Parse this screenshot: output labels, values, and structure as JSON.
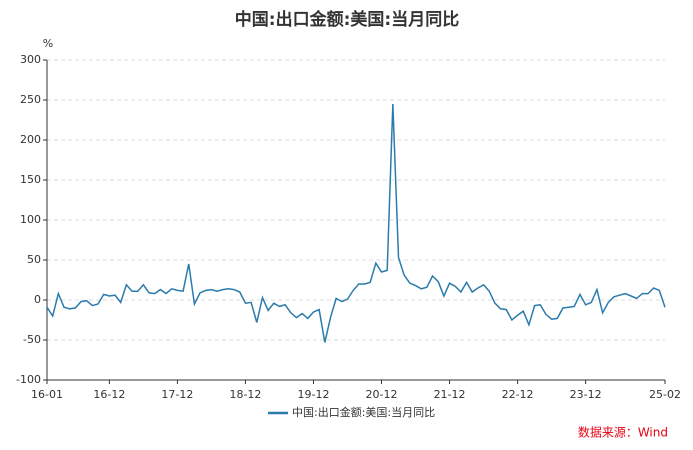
{
  "chart_data": {
    "type": "line",
    "title": "中国:出口金额:美国:当月同比",
    "y_unit": "%",
    "source": "数据来源：Wind",
    "x": [
      "16-01",
      "16-02",
      "16-03",
      "16-04",
      "16-05",
      "16-06",
      "16-07",
      "16-08",
      "16-09",
      "16-10",
      "16-11",
      "16-12",
      "17-01",
      "17-02",
      "17-03",
      "17-04",
      "17-05",
      "17-06",
      "17-07",
      "17-08",
      "17-09",
      "17-10",
      "17-11",
      "17-12",
      "18-01",
      "18-02",
      "18-03",
      "18-04",
      "18-05",
      "18-06",
      "18-07",
      "18-08",
      "18-09",
      "18-10",
      "18-11",
      "18-12",
      "19-01",
      "19-02",
      "19-03",
      "19-04",
      "19-05",
      "19-06",
      "19-07",
      "19-08",
      "19-09",
      "19-10",
      "19-11",
      "19-12",
      "20-01",
      "20-02",
      "20-03",
      "20-04",
      "20-05",
      "20-06",
      "20-07",
      "20-08",
      "20-09",
      "20-10",
      "20-11",
      "20-12",
      "21-01",
      "21-02",
      "21-03",
      "21-04",
      "21-05",
      "21-06",
      "21-07",
      "21-08",
      "21-09",
      "21-10",
      "21-11",
      "21-12",
      "22-01",
      "22-02",
      "22-03",
      "22-04",
      "22-05",
      "22-06",
      "22-07",
      "22-08",
      "22-09",
      "22-10",
      "22-11",
      "22-12",
      "23-01",
      "23-02",
      "23-03",
      "23-04",
      "23-05",
      "23-06",
      "23-07",
      "23-08",
      "23-09",
      "23-10",
      "23-11",
      "23-12",
      "24-01",
      "24-02",
      "24-03",
      "24-04",
      "24-05",
      "24-06",
      "24-07",
      "24-08",
      "24-09",
      "24-10",
      "24-11",
      "24-12",
      "25-01",
      "25-02"
    ],
    "series": [
      {
        "name": "中国:出口金额:美国:当月同比",
        "color": "#2b7bab",
        "values": [
          -9,
          -20,
          8,
          -9,
          -11,
          -10,
          -2,
          -1,
          -7,
          -5,
          7,
          5,
          6,
          -3,
          19,
          11,
          11,
          19,
          9,
          8,
          13,
          8,
          14,
          12,
          11,
          45,
          -5,
          9,
          12,
          13,
          11,
          13,
          14,
          13,
          10,
          -4,
          -3,
          -28,
          3,
          -13,
          -4,
          -8,
          -6,
          -16,
          -22,
          -17,
          -23,
          -15,
          -12,
          -53,
          -22,
          2,
          -2,
          1,
          12,
          20,
          20,
          22,
          46,
          35,
          37,
          245,
          53,
          31,
          21,
          18,
          14,
          16,
          30,
          23,
          5,
          21,
          17,
          10,
          22,
          10,
          15,
          19,
          11,
          -4,
          -11,
          -12,
          -25,
          -19,
          -14,
          -31,
          -7,
          -6,
          -18,
          -24,
          -23,
          -10,
          -9,
          -8,
          7,
          -6,
          -3,
          13,
          -16,
          -3,
          4,
          6,
          8,
          5,
          2,
          8,
          8,
          15,
          12,
          -9
        ]
      }
    ],
    "xticks": [
      "16-01",
      "16-12",
      "17-12",
      "18-12",
      "19-12",
      "20-12",
      "21-12",
      "22-12",
      "23-12",
      "25-02"
    ],
    "ylim": [
      -100,
      300
    ],
    "yticks": [
      300,
      250,
      200,
      150,
      100,
      50,
      0,
      -50,
      -100
    ],
    "grid": true
  }
}
